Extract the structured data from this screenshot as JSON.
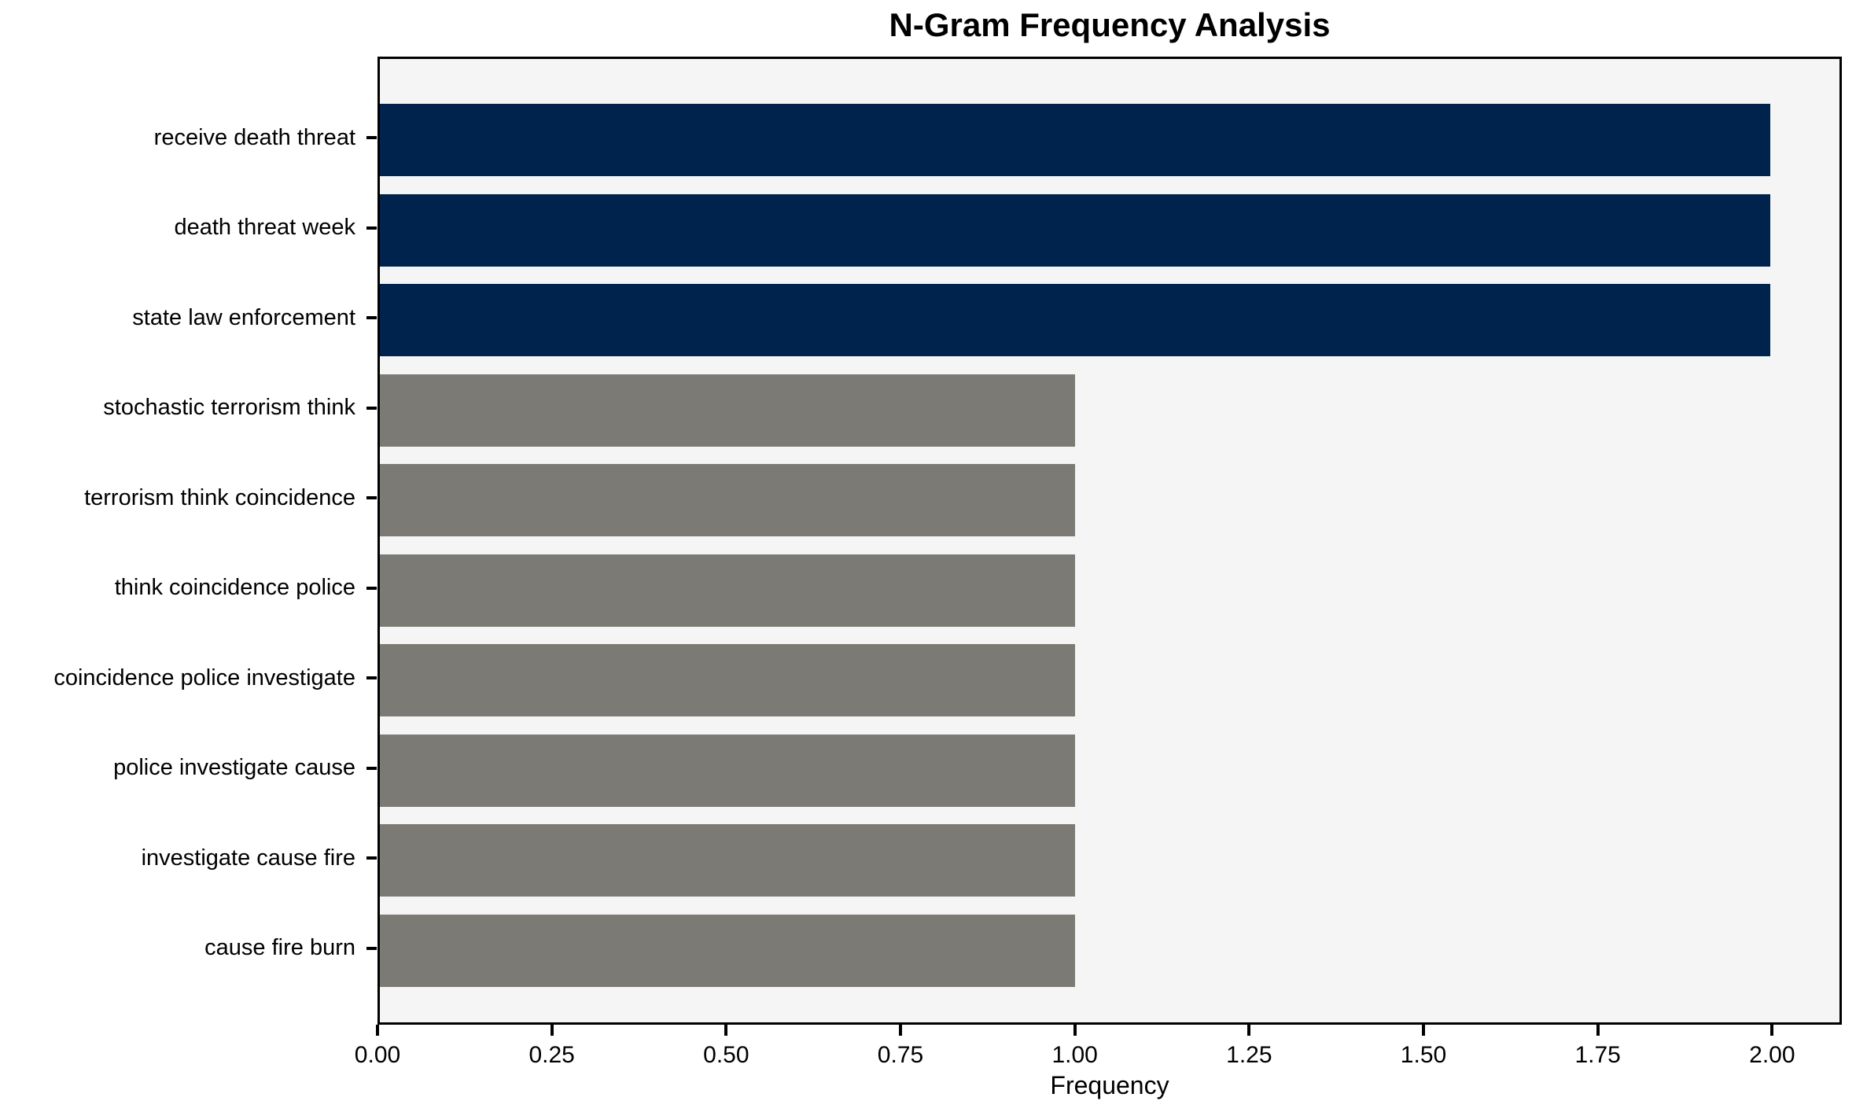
{
  "title": "N-Gram Frequency Analysis",
  "colors": {
    "highlight_bar": "#00234d",
    "default_bar": "#7b7a74",
    "plot_background": "#f5f5f5",
    "spine": "#000000",
    "text": "#000000"
  },
  "chart_data": {
    "type": "bar",
    "orientation": "horizontal",
    "title": "N-Gram Frequency Analysis",
    "xlabel": "Frequency",
    "ylabel": "",
    "categories": [
      "receive death threat",
      "death threat week",
      "state law enforcement",
      "stochastic terrorism think",
      "terrorism think coincidence",
      "think coincidence police",
      "coincidence police investigate",
      "police investigate cause",
      "investigate cause fire",
      "cause fire burn"
    ],
    "values": [
      2,
      2,
      2,
      1,
      1,
      1,
      1,
      1,
      1,
      1
    ],
    "bar_colors": [
      "#00234d",
      "#00234d",
      "#00234d",
      "#7b7a74",
      "#7b7a74",
      "#7b7a74",
      "#7b7a74",
      "#7b7a74",
      "#7b7a74",
      "#7b7a74"
    ],
    "xlim": [
      0,
      2.1
    ],
    "xticks": [
      {
        "value": 0.0,
        "label": "0.00"
      },
      {
        "value": 0.25,
        "label": "0.25"
      },
      {
        "value": 0.5,
        "label": "0.50"
      },
      {
        "value": 0.75,
        "label": "0.75"
      },
      {
        "value": 1.0,
        "label": "1.00"
      },
      {
        "value": 1.25,
        "label": "1.25"
      },
      {
        "value": 1.5,
        "label": "1.50"
      },
      {
        "value": 1.75,
        "label": "1.75"
      },
      {
        "value": 2.0,
        "label": "2.00"
      }
    ],
    "grid": false,
    "legend": null
  }
}
